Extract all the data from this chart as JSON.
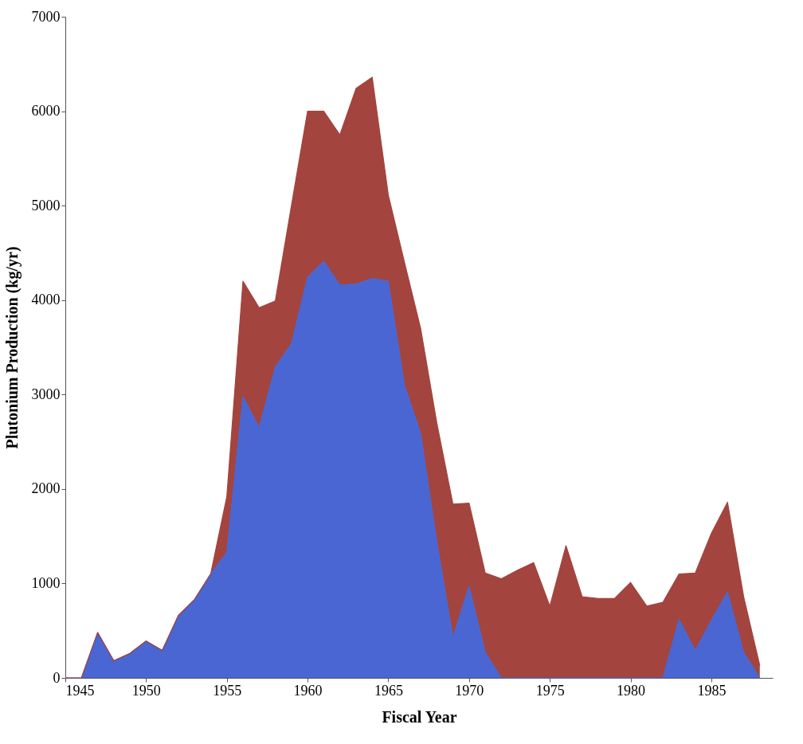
{
  "chart_data": {
    "type": "area",
    "stacked": true,
    "xlabel": "Fiscal Year",
    "ylabel": "Plutonium Production (kg/yr)",
    "x": [
      1945,
      1946,
      1947,
      1948,
      1949,
      1950,
      1951,
      1952,
      1953,
      1954,
      1955,
      1956,
      1957,
      1958,
      1959,
      1960,
      1961,
      1962,
      1963,
      1964,
      1965,
      1966,
      1967,
      1968,
      1969,
      1970,
      1971,
      1972,
      1973,
      1974,
      1975,
      1976,
      1977,
      1978,
      1979,
      1980,
      1981,
      1982,
      1983,
      1984,
      1985,
      1986,
      1987,
      1988
    ],
    "series": [
      {
        "color": "#4a66d2",
        "values": [
          0,
          0,
          480,
          180,
          260,
          390,
          290,
          660,
          830,
          1100,
          1330,
          2980,
          2650,
          3290,
          3540,
          4240,
          4410,
          4160,
          4170,
          4230,
          4200,
          3100,
          2590,
          1450,
          430,
          970,
          270,
          0,
          0,
          0,
          0,
          0,
          0,
          0,
          0,
          0,
          0,
          0,
          620,
          290,
          610,
          910,
          270,
          0
        ]
      },
      {
        "color": "#a3443f",
        "values": [
          0,
          0,
          0,
          0,
          0,
          0,
          0,
          0,
          0,
          0,
          590,
          1220,
          1270,
          700,
          1460,
          1760,
          1590,
          1590,
          2070,
          2130,
          910,
          1300,
          1110,
          1250,
          1410,
          880,
          840,
          1050,
          1140,
          1220,
          760,
          1400,
          860,
          840,
          840,
          1010,
          760,
          800,
          480,
          820,
          920,
          950,
          590,
          130
        ]
      }
    ],
    "xlim": [
      1945,
      1988.8
    ],
    "xticks": [
      1945,
      1950,
      1955,
      1960,
      1965,
      1970,
      1975,
      1980,
      1985
    ],
    "ylim": [
      0,
      7000
    ],
    "yticks": [
      0,
      1000,
      2000,
      3000,
      4000,
      5000,
      6000,
      7000
    ],
    "grid": false,
    "legend": false
  }
}
